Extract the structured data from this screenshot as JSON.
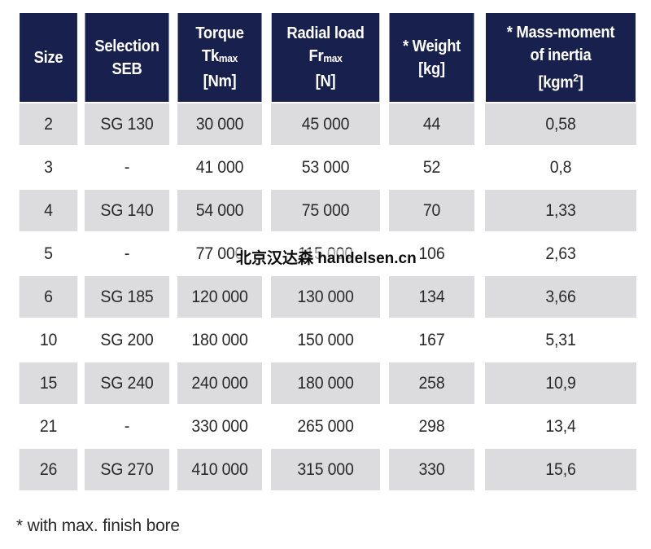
{
  "table": {
    "headers": [
      {
        "lines": [
          "Size"
        ]
      },
      {
        "lines": [
          "Selection",
          "SEB"
        ]
      },
      {
        "lines": [
          "Torque",
          "Tk",
          "[Nm]"
        ],
        "sub": "max"
      },
      {
        "lines": [
          "Radial load",
          "Fr",
          "[N]"
        ],
        "sub": "max"
      },
      {
        "lines": [
          "* Weight",
          "[kg]"
        ]
      },
      {
        "lines": [
          "* Mass-moment",
          "of inertia",
          "[kgm",
          "]"
        ],
        "sup": "2"
      }
    ],
    "rows": [
      [
        "2",
        "SG 130",
        "30 000",
        "45 000",
        "44",
        "0,58"
      ],
      [
        "3",
        "-",
        "41 000",
        "53 000",
        "52",
        "0,8"
      ],
      [
        "4",
        "SG 140",
        "54 000",
        "75 000",
        "70",
        "1,33"
      ],
      [
        "5",
        "-",
        "77 000",
        "115 000",
        "106",
        "2,63"
      ],
      [
        "6",
        "SG 185",
        "120 000",
        "130 000",
        "134",
        "3,66"
      ],
      [
        "10",
        "SG 200",
        "180 000",
        "150 000",
        "167",
        "5,31"
      ],
      [
        "15",
        "SG 240",
        "240 000",
        "180 000",
        "258",
        "10,9"
      ],
      [
        "21",
        "-",
        "330 000",
        "265 000",
        "298",
        "13,4"
      ],
      [
        "26",
        "SG 270",
        "410 000",
        "315 000",
        "330",
        "15,6"
      ]
    ]
  },
  "footnote": "* with max. finish bore",
  "watermark": "北京汉达森 handelsen.cn",
  "colors": {
    "header_bg": "#18214d",
    "header_text": "#ffffff",
    "row_shaded": "#dcdcdf",
    "row_plain": "#ffffff"
  }
}
